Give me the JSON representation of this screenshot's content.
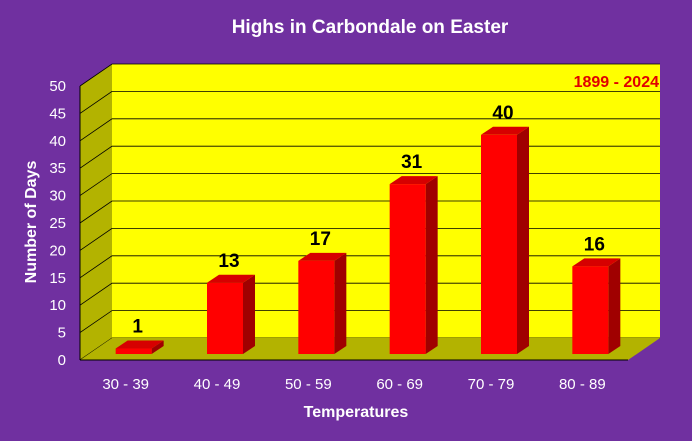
{
  "chart_data": {
    "type": "bar",
    "title": "Highs in Carbondale on Easter",
    "annotation": "1899 - 2024",
    "xlabel": "Temperatures",
    "ylabel": "Number of Days",
    "categories": [
      "30 - 39",
      "40 - 49",
      "50 - 59",
      "60 - 69",
      "70 - 79",
      "80 - 89"
    ],
    "values": [
      1,
      13,
      17,
      31,
      40,
      16
    ],
    "ylim": [
      0,
      50
    ],
    "yticks": [
      "0",
      "5",
      "10",
      "15",
      "20",
      "25",
      "30",
      "35",
      "40",
      "45",
      "50"
    ],
    "grid": true,
    "legend": "none",
    "colors": {
      "background": "#7030a0",
      "plot_area": "#ffff00",
      "walls": "#b3b300",
      "bar_front": "#ff0000",
      "bar_side": "#a00000",
      "bar_top": "#d60000",
      "annotation": "#e00000"
    }
  }
}
